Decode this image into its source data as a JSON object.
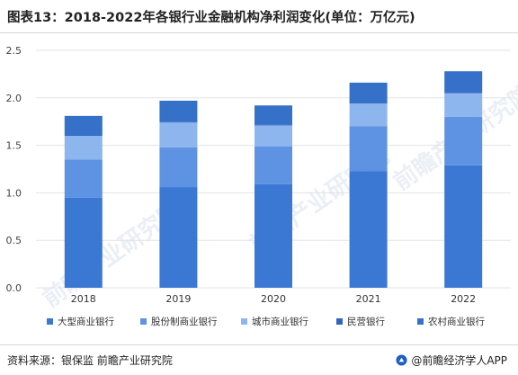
{
  "header": {
    "title": "图表13：2018-2022年各银行业金融机构净利润变化(单位：万亿元)"
  },
  "footer": {
    "source": "资料来源：银保监 前瞻产业研究院",
    "brand": "@前瞻经济学人APP"
  },
  "watermark": {
    "text": "前瞻产业研究院"
  },
  "colors": {
    "large": "#3a78d4",
    "joint": "#5d93e2",
    "city": "#8db5ee",
    "private": "#2f66bf",
    "rural": "#3570c9"
  },
  "chart_data": {
    "type": "bar",
    "stacked": true,
    "categories": [
      "2018",
      "2019",
      "2020",
      "2021",
      "2022"
    ],
    "series": [
      {
        "name": "大型商业银行",
        "values": [
          0.95,
          1.06,
          1.09,
          1.23,
          1.29
        ],
        "color": "#3a78d4"
      },
      {
        "name": "股份制商业银行",
        "values": [
          0.4,
          0.42,
          0.4,
          0.47,
          0.51
        ],
        "color": "#5d93e2"
      },
      {
        "name": "城市商业银行",
        "values": [
          0.25,
          0.26,
          0.22,
          0.24,
          0.25
        ],
        "color": "#8db5ee"
      },
      {
        "name": "民营银行",
        "values": [
          0.01,
          0.01,
          0.01,
          0.01,
          0.01
        ],
        "color": "#2f66bf"
      },
      {
        "name": "农村商业银行",
        "values": [
          0.2,
          0.22,
          0.2,
          0.21,
          0.22
        ],
        "color": "#3570c9"
      }
    ],
    "ylim": [
      0,
      2.5
    ],
    "yticks": [
      "0.0",
      "0.5",
      "1.0",
      "1.5",
      "2.0",
      "2.5"
    ],
    "grid": true,
    "legend": "bottom"
  }
}
